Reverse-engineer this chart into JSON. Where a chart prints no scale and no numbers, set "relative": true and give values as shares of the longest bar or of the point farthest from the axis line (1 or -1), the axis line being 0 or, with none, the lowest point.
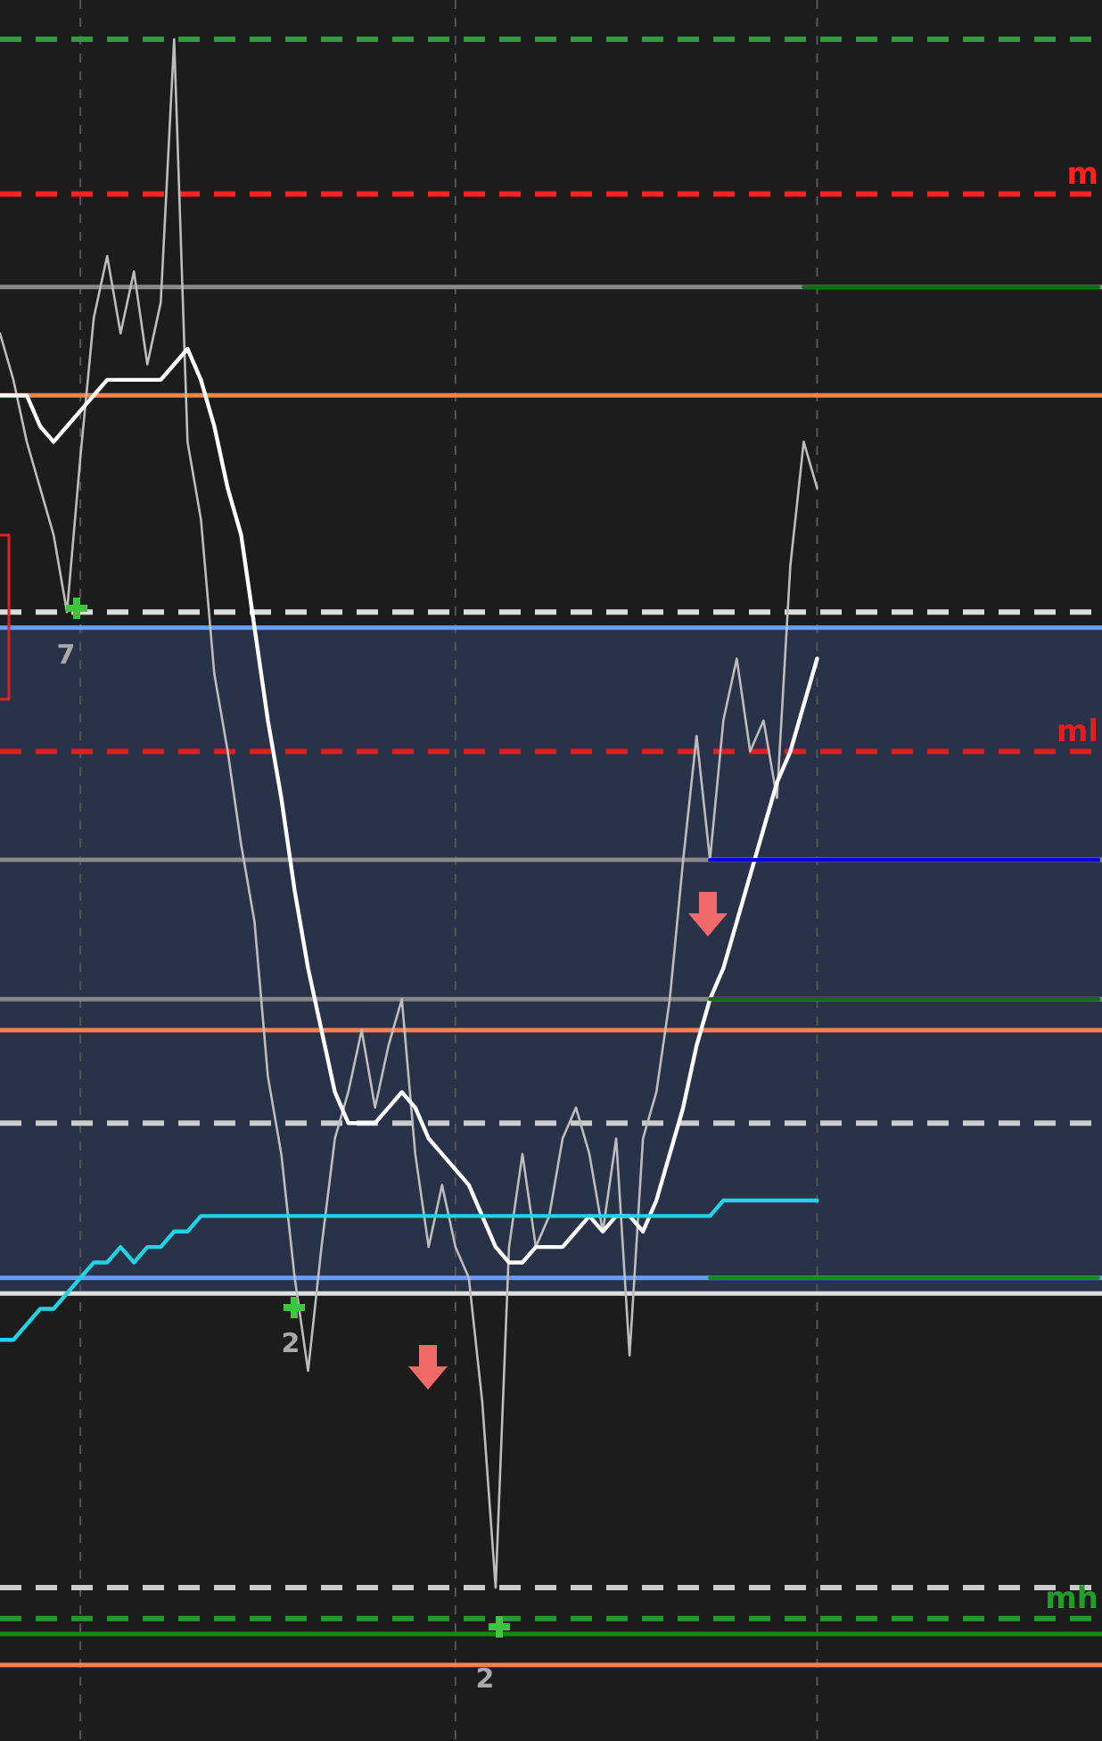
{
  "chart_data": {
    "type": "line",
    "relative": true,
    "grid": "x",
    "categories": [
      null,
      null,
      null,
      null,
      null,
      null,
      null,
      null,
      null,
      null,
      null,
      null,
      null,
      null,
      null,
      null,
      null,
      null,
      null,
      null,
      null,
      null,
      null,
      null,
      null,
      null,
      null,
      null,
      null,
      null,
      null,
      null,
      null,
      null,
      null,
      null,
      null,
      null,
      null,
      null,
      null,
      null,
      null,
      null,
      null,
      null,
      null,
      null,
      null,
      null,
      null,
      null,
      null,
      null,
      null,
      null,
      null,
      null,
      null,
      null,
      null,
      null,
      null,
      null,
      null,
      null,
      null,
      null,
      null,
      null,
      null,
      null,
      null,
      null,
      null,
      null,
      null,
      null,
      null,
      null,
      null,
      null,
      null
    ],
    "series": [
      {
        "color": "#bdbdbd",
        "values": [
          0.81,
          0.78,
          0.74,
          0.71,
          0.68,
          0.63,
          0.73,
          0.82,
          0.86,
          0.81,
          0.85,
          0.79,
          0.83,
          1.0,
          0.74,
          0.69,
          0.59,
          0.54,
          0.48,
          0.43,
          0.33,
          0.28,
          0.2,
          0.14,
          0.22,
          0.29,
          0.32,
          0.36,
          0.31,
          0.35,
          0.38,
          0.28,
          0.22,
          0.26,
          0.22,
          0.2,
          0.12,
          0,
          0.22,
          0.28,
          0.22,
          0.24,
          0.29,
          0.31,
          0.28,
          0.23,
          0.29,
          0.15,
          0.29,
          0.32,
          0.38,
          0.47,
          0.55,
          0.47,
          0.56,
          0.6,
          0.54,
          0.56,
          0.51,
          0.66,
          0.74,
          0.71,
          null,
          null,
          null,
          null,
          null,
          null,
          null,
          null,
          null,
          null,
          null,
          null,
          null,
          null,
          null,
          null,
          null,
          null,
          null,
          null,
          null
        ]
      },
      {
        "color": "#ffffff",
        "values": [
          0.77,
          0.77,
          0.77,
          0.75,
          0.74,
          0.75,
          0.76,
          0.77,
          0.78,
          0.78,
          0.78,
          0.78,
          0.78,
          0.79,
          0.8,
          0.78,
          0.75,
          0.71,
          0.68,
          0.62,
          0.56,
          0.51,
          0.45,
          0.4,
          0.36,
          0.32,
          0.3,
          0.3,
          0.3,
          0.31,
          0.32,
          0.31,
          0.29,
          0.28,
          0.27,
          0.26,
          0.24,
          0.22,
          0.21,
          0.21,
          0.22,
          0.22,
          0.22,
          0.23,
          0.24,
          0.23,
          0.24,
          0.24,
          0.23,
          0.25,
          0.28,
          0.31,
          0.35,
          0.38,
          0.4,
          0.43,
          0.46,
          0.49,
          0.52,
          0.54,
          0.57,
          0.6,
          null,
          null,
          null,
          null,
          null,
          null,
          null,
          null,
          null,
          null,
          null,
          null,
          null,
          null,
          null,
          null,
          null,
          null,
          null,
          null,
          null
        ]
      },
      {
        "color": "#22d3e6",
        "values": [
          0.16,
          0.16,
          0.17,
          0.18,
          0.18,
          0.19,
          0.2,
          0.21,
          0.21,
          0.22,
          0.21,
          0.22,
          0.22,
          0.23,
          0.23,
          0.24,
          0.24,
          0.24,
          0.24,
          0.24,
          0.24,
          0.24,
          0.24,
          0.24,
          0.24,
          0.24,
          0.24,
          0.24,
          0.24,
          0.24,
          0.24,
          0.24,
          0.24,
          0.24,
          0.24,
          0.24,
          0.24,
          0.24,
          0.24,
          0.24,
          0.24,
          0.24,
          0.24,
          0.24,
          0.24,
          0.24,
          0.24,
          0.24,
          0.24,
          0.24,
          0.24,
          0.24,
          0.24,
          0.24,
          0.25,
          0.25,
          0.25,
          0.25,
          0.25,
          0.25,
          0.25,
          0.25,
          null,
          null,
          null,
          null,
          null,
          null,
          null,
          null,
          null,
          null,
          null,
          null,
          null,
          null,
          null,
          null,
          null,
          null,
          null,
          null,
          null
        ]
      },
      {
        "color": "#0000dd",
        "values": [
          null,
          null,
          null,
          null,
          null,
          null,
          null,
          null,
          null,
          null,
          null,
          null,
          null,
          null,
          null,
          null,
          null,
          null,
          null,
          null,
          null,
          null,
          null,
          null,
          null,
          null,
          null,
          null,
          null,
          null,
          null,
          null,
          null,
          null,
          null,
          null,
          null,
          null,
          null,
          null,
          null,
          null,
          null,
          null,
          null,
          null,
          null,
          null,
          null,
          null,
          null,
          null,
          null,
          0.47,
          0.47,
          0.47,
          0.47,
          0.47,
          0.47,
          0.47,
          0.47,
          0.47,
          0.47,
          0.47,
          0.47,
          0.47,
          0.47,
          0.47,
          0.47,
          0.47,
          0.47,
          0.47,
          0.47,
          0.47,
          0.47,
          0.47,
          0.47,
          0.47,
          0.47,
          0.47,
          0.47,
          0.47,
          0.47
        ]
      },
      {
        "color": "#0f6a12",
        "values": [
          null,
          null,
          null,
          null,
          null,
          null,
          null,
          null,
          null,
          null,
          null,
          null,
          null,
          null,
          null,
          null,
          null,
          null,
          null,
          null,
          null,
          null,
          null,
          null,
          null,
          null,
          null,
          null,
          null,
          null,
          null,
          null,
          null,
          null,
          null,
          null,
          null,
          null,
          null,
          null,
          null,
          null,
          null,
          null,
          null,
          null,
          null,
          null,
          null,
          null,
          null,
          null,
          null,
          0.38,
          0.38,
          0.38,
          0.38,
          0.38,
          0.38,
          0.38,
          0.38,
          0.38,
          0.38,
          0.38,
          0.38,
          0.38,
          0.38,
          0.38,
          0.38,
          0.38,
          0.38,
          0.38,
          0.38,
          0.38,
          0.38,
          0.38,
          0.38,
          0.38,
          0.38,
          0.38,
          0.38,
          0.38,
          0.38
        ]
      },
      {
        "color": "#1a8a1a",
        "values": [
          null,
          null,
          null,
          null,
          null,
          null,
          null,
          null,
          null,
          null,
          null,
          null,
          null,
          null,
          null,
          null,
          null,
          null,
          null,
          null,
          null,
          null,
          null,
          null,
          null,
          null,
          null,
          null,
          null,
          null,
          null,
          null,
          null,
          null,
          null,
          null,
          null,
          null,
          null,
          null,
          null,
          null,
          null,
          null,
          null,
          null,
          null,
          null,
          null,
          null,
          null,
          null,
          null,
          0.2,
          0.2,
          0.2,
          0.2,
          0.2,
          0.2,
          0.2,
          0.2,
          0.2,
          0.2,
          0.2,
          0.2,
          0.2,
          0.2,
          0.2,
          0.2,
          0.2,
          0.2,
          0.2,
          0.2,
          0.2,
          0.2,
          0.2,
          0.2,
          0.2,
          0.2,
          0.2,
          0.2,
          0.2,
          0.2
        ]
      },
      {
        "color": "#0f6a12",
        "values": [
          null,
          null,
          null,
          null,
          null,
          null,
          null,
          null,
          null,
          null,
          null,
          null,
          null,
          null,
          null,
          null,
          null,
          null,
          null,
          null,
          null,
          null,
          null,
          null,
          null,
          null,
          null,
          null,
          null,
          null,
          null,
          null,
          null,
          null,
          null,
          null,
          null,
          null,
          null,
          null,
          null,
          null,
          null,
          null,
          null,
          null,
          null,
          null,
          null,
          null,
          null,
          null,
          null,
          null,
          null,
          null,
          null,
          null,
          null,
          null,
          0.84,
          0.84,
          0.84,
          0.84,
          0.84,
          0.84,
          0.84,
          0.84,
          0.84,
          0.84,
          0.84,
          0.84,
          0.84,
          0.84,
          0.84,
          0.84,
          0.84,
          0.84,
          0.84,
          0.84,
          0.84,
          0.84,
          0.84
        ]
      }
    ],
    "bands": [
      {
        "axis": "y",
        "from": 0.19,
        "to": 0.62,
        "color": "#283248"
      }
    ],
    "ref_lines": [
      {
        "axis": "y",
        "value": 1.0,
        "color": "#2e9e3a",
        "line_style": "dashed"
      },
      {
        "axis": "y",
        "value": 0.9,
        "color": "#ff2020",
        "line_style": "dashed",
        "label": "m"
      },
      {
        "axis": "y",
        "value": 0.84,
        "color": "#888888"
      },
      {
        "axis": "y",
        "value": 0.77,
        "color": "#ff7f50"
      },
      {
        "axis": "y",
        "value": 0.63,
        "color": "#dddddd",
        "line_style": "dashed"
      },
      {
        "axis": "y",
        "value": 0.62,
        "color": "#6a9cf0"
      },
      {
        "axis": "y",
        "value": 0.54,
        "color": "#e02020",
        "line_style": "dashed",
        "label": "ml"
      },
      {
        "axis": "y",
        "value": 0.47,
        "color": "#888888"
      },
      {
        "axis": "y",
        "value": 0.38,
        "color": "#888888"
      },
      {
        "axis": "y",
        "value": 0.36,
        "color": "#ff7f50"
      },
      {
        "axis": "y",
        "value": 0.3,
        "color": "#cccccc",
        "line_style": "dashed"
      },
      {
        "axis": "y",
        "value": 0.2,
        "color": "#6a9cf0"
      },
      {
        "axis": "y",
        "value": 0.19,
        "color": "#e0e0e0"
      },
      {
        "axis": "y",
        "value": 0,
        "color": "#cccccc",
        "line_style": "dashed"
      },
      {
        "axis": "y",
        "value": -0.02,
        "color": "#1f9e2a",
        "line_style": "dashed",
        "label": "mh"
      },
      {
        "axis": "y",
        "value": -0.03,
        "color": "#128a12"
      },
      {
        "axis": "y",
        "value": -0.05,
        "color": "#ff7f50"
      }
    ],
    "annotations": [
      "7",
      "2",
      "2"
    ]
  }
}
